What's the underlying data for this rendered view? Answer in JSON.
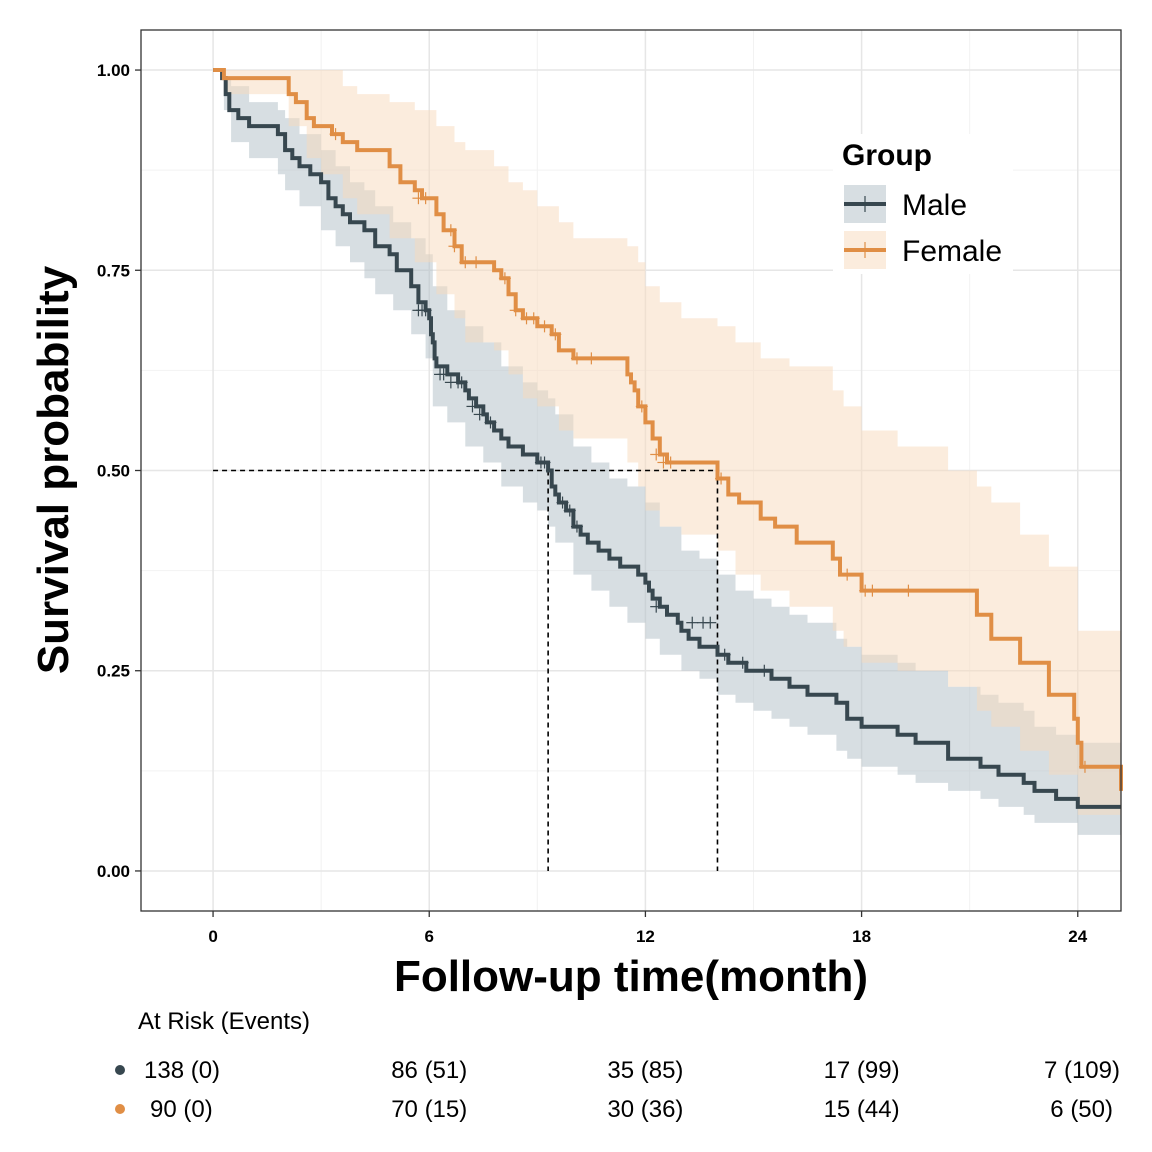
{
  "chart_data": {
    "type": "line",
    "subtype": "kaplan-meier",
    "title": "",
    "xlabel": "Follow-up time(month)",
    "ylabel": "Survival probability",
    "xlim": [
      -2,
      25.2
    ],
    "ylim": [
      -0.05,
      1.05
    ],
    "x_ticks": [
      0,
      6,
      12,
      18,
      24
    ],
    "y_ticks": [
      0.0,
      0.25,
      0.5,
      0.75,
      1.0
    ],
    "y_tick_labels": [
      "0.00",
      "0.25",
      "0.50",
      "0.75",
      "1.00"
    ],
    "grid": true,
    "legend": {
      "title": "Group",
      "position": "top-right"
    },
    "median_lines": [
      {
        "series": "Male",
        "x": 9.3,
        "y": 0.5
      },
      {
        "series": "Female",
        "x": 14.0,
        "y": 0.5
      }
    ],
    "series": [
      {
        "name": "Male",
        "color": "#37474F",
        "band_color": "#B0BEC5",
        "steps": [
          [
            0,
            1.0
          ],
          [
            0.25,
            0.99
          ],
          [
            0.35,
            0.97
          ],
          [
            0.45,
            0.95
          ],
          [
            0.7,
            0.94
          ],
          [
            1.0,
            0.93
          ],
          [
            1.8,
            0.92
          ],
          [
            2.0,
            0.9
          ],
          [
            2.2,
            0.89
          ],
          [
            2.4,
            0.88
          ],
          [
            2.7,
            0.87
          ],
          [
            3.0,
            0.86
          ],
          [
            3.2,
            0.84
          ],
          [
            3.4,
            0.83
          ],
          [
            3.6,
            0.82
          ],
          [
            3.8,
            0.81
          ],
          [
            4.2,
            0.8
          ],
          [
            4.5,
            0.78
          ],
          [
            4.9,
            0.77
          ],
          [
            5.1,
            0.75
          ],
          [
            5.5,
            0.73
          ],
          [
            5.7,
            0.71
          ],
          [
            5.9,
            0.7
          ],
          [
            6.0,
            0.69
          ],
          [
            6.05,
            0.67
          ],
          [
            6.1,
            0.66
          ],
          [
            6.15,
            0.64
          ],
          [
            6.2,
            0.63
          ],
          [
            6.5,
            0.62
          ],
          [
            6.8,
            0.61
          ],
          [
            7.0,
            0.6
          ],
          [
            7.1,
            0.59
          ],
          [
            7.3,
            0.58
          ],
          [
            7.5,
            0.57
          ],
          [
            7.6,
            0.56
          ],
          [
            7.8,
            0.55
          ],
          [
            8.0,
            0.54
          ],
          [
            8.2,
            0.53
          ],
          [
            8.6,
            0.52
          ],
          [
            9.0,
            0.51
          ],
          [
            9.3,
            0.5
          ],
          [
            9.4,
            0.48
          ],
          [
            9.5,
            0.47
          ],
          [
            9.6,
            0.46
          ],
          [
            9.8,
            0.45
          ],
          [
            10.0,
            0.43
          ],
          [
            10.2,
            0.42
          ],
          [
            10.4,
            0.41
          ],
          [
            10.7,
            0.4
          ],
          [
            11.0,
            0.39
          ],
          [
            11.3,
            0.38
          ],
          [
            11.8,
            0.37
          ],
          [
            12.0,
            0.36
          ],
          [
            12.1,
            0.35
          ],
          [
            12.2,
            0.34
          ],
          [
            12.4,
            0.33
          ],
          [
            12.6,
            0.32
          ],
          [
            12.9,
            0.31
          ],
          [
            13.0,
            0.3
          ],
          [
            13.2,
            0.29
          ],
          [
            13.5,
            0.28
          ],
          [
            14.0,
            0.27
          ],
          [
            14.3,
            0.26
          ],
          [
            14.8,
            0.25
          ],
          [
            15.5,
            0.24
          ],
          [
            16.0,
            0.23
          ],
          [
            16.5,
            0.22
          ],
          [
            17.3,
            0.21
          ],
          [
            17.6,
            0.19
          ],
          [
            18.0,
            0.18
          ],
          [
            19.0,
            0.17
          ],
          [
            19.5,
            0.16
          ],
          [
            20.4,
            0.14
          ],
          [
            21.3,
            0.13
          ],
          [
            21.8,
            0.12
          ],
          [
            22.5,
            0.11
          ],
          [
            22.8,
            0.1
          ],
          [
            23.4,
            0.09
          ],
          [
            24.0,
            0.08
          ],
          [
            25.2,
            0.08
          ]
        ],
        "band": [
          [
            0,
            1.0,
            1.0
          ],
          [
            0.3,
            0.99,
            0.95
          ],
          [
            0.5,
            0.98,
            0.91
          ],
          [
            1.0,
            0.96,
            0.89
          ],
          [
            1.8,
            0.95,
            0.87
          ],
          [
            2.0,
            0.94,
            0.85
          ],
          [
            2.4,
            0.92,
            0.83
          ],
          [
            3.0,
            0.9,
            0.8
          ],
          [
            3.4,
            0.88,
            0.78
          ],
          [
            3.8,
            0.86,
            0.76
          ],
          [
            4.2,
            0.85,
            0.74
          ],
          [
            4.5,
            0.83,
            0.72
          ],
          [
            5.0,
            0.81,
            0.7
          ],
          [
            5.5,
            0.79,
            0.67
          ],
          [
            5.9,
            0.77,
            0.64
          ],
          [
            6.1,
            0.73,
            0.58
          ],
          [
            6.5,
            0.7,
            0.56
          ],
          [
            7.0,
            0.68,
            0.53
          ],
          [
            7.5,
            0.66,
            0.51
          ],
          [
            8.0,
            0.63,
            0.48
          ],
          [
            8.6,
            0.61,
            0.46
          ],
          [
            9.0,
            0.6,
            0.45
          ],
          [
            9.3,
            0.59,
            0.43
          ],
          [
            9.5,
            0.57,
            0.41
          ],
          [
            10.0,
            0.53,
            0.37
          ],
          [
            10.5,
            0.51,
            0.35
          ],
          [
            11.0,
            0.49,
            0.33
          ],
          [
            11.5,
            0.48,
            0.31
          ],
          [
            12.0,
            0.46,
            0.29
          ],
          [
            12.4,
            0.43,
            0.27
          ],
          [
            13.0,
            0.4,
            0.25
          ],
          [
            13.5,
            0.39,
            0.24
          ],
          [
            14.0,
            0.37,
            0.22
          ],
          [
            14.5,
            0.35,
            0.21
          ],
          [
            15.0,
            0.34,
            0.2
          ],
          [
            15.5,
            0.33,
            0.19
          ],
          [
            16.0,
            0.32,
            0.18
          ],
          [
            16.5,
            0.31,
            0.17
          ],
          [
            17.3,
            0.29,
            0.15
          ],
          [
            17.6,
            0.28,
            0.14
          ],
          [
            18.0,
            0.27,
            0.13
          ],
          [
            19.0,
            0.26,
            0.12
          ],
          [
            19.5,
            0.25,
            0.11
          ],
          [
            20.4,
            0.23,
            0.1
          ],
          [
            21.3,
            0.22,
            0.09
          ],
          [
            21.8,
            0.21,
            0.08
          ],
          [
            22.5,
            0.2,
            0.07
          ],
          [
            22.8,
            0.18,
            0.06
          ],
          [
            23.4,
            0.17,
            0.06
          ],
          [
            24.0,
            0.16,
            0.045
          ],
          [
            25.2,
            0.16,
            0.045
          ]
        ],
        "censored": [
          [
            5.7,
            0.7
          ],
          [
            5.8,
            0.7
          ],
          [
            5.9,
            0.7
          ],
          [
            6.3,
            0.62
          ],
          [
            6.4,
            0.62
          ],
          [
            6.6,
            0.61
          ],
          [
            6.8,
            0.61
          ],
          [
            6.9,
            0.61
          ],
          [
            7.2,
            0.58
          ],
          [
            7.4,
            0.57
          ],
          [
            7.7,
            0.56
          ],
          [
            9.1,
            0.51
          ],
          [
            9.2,
            0.51
          ],
          [
            9.7,
            0.46
          ],
          [
            9.9,
            0.45
          ],
          [
            10.1,
            0.43
          ],
          [
            12.3,
            0.33
          ],
          [
            13.3,
            0.31
          ],
          [
            13.6,
            0.31
          ],
          [
            13.8,
            0.31
          ],
          [
            14.2,
            0.27
          ],
          [
            14.7,
            0.26
          ],
          [
            15.3,
            0.25
          ]
        ]
      },
      {
        "name": "Female",
        "color": "#E08E45",
        "band_color": "#F8D9BC",
        "steps": [
          [
            0,
            1.0
          ],
          [
            0.3,
            0.99
          ],
          [
            2.1,
            0.97
          ],
          [
            2.3,
            0.96
          ],
          [
            2.6,
            0.94
          ],
          [
            2.8,
            0.93
          ],
          [
            3.3,
            0.92
          ],
          [
            3.6,
            0.91
          ],
          [
            4.0,
            0.9
          ],
          [
            4.9,
            0.88
          ],
          [
            5.2,
            0.86
          ],
          [
            5.6,
            0.85
          ],
          [
            5.8,
            0.84
          ],
          [
            6.2,
            0.82
          ],
          [
            6.4,
            0.8
          ],
          [
            6.7,
            0.78
          ],
          [
            6.9,
            0.76
          ],
          [
            7.8,
            0.75
          ],
          [
            8.0,
            0.74
          ],
          [
            8.2,
            0.72
          ],
          [
            8.4,
            0.7
          ],
          [
            8.6,
            0.69
          ],
          [
            9.0,
            0.68
          ],
          [
            9.4,
            0.67
          ],
          [
            9.6,
            0.65
          ],
          [
            10.0,
            0.64
          ],
          [
            11.5,
            0.62
          ],
          [
            11.6,
            0.61
          ],
          [
            11.7,
            0.6
          ],
          [
            11.8,
            0.58
          ],
          [
            12.0,
            0.56
          ],
          [
            12.2,
            0.54
          ],
          [
            12.4,
            0.52
          ],
          [
            12.6,
            0.51
          ],
          [
            14.0,
            0.49
          ],
          [
            14.3,
            0.47
          ],
          [
            14.6,
            0.46
          ],
          [
            15.2,
            0.44
          ],
          [
            15.6,
            0.43
          ],
          [
            16.2,
            0.41
          ],
          [
            17.2,
            0.39
          ],
          [
            17.4,
            0.37
          ],
          [
            18.0,
            0.35
          ],
          [
            21.2,
            0.32
          ],
          [
            21.6,
            0.29
          ],
          [
            22.4,
            0.26
          ],
          [
            23.2,
            0.22
          ],
          [
            23.9,
            0.19
          ],
          [
            24.0,
            0.16
          ],
          [
            24.1,
            0.13
          ],
          [
            25.2,
            0.1
          ]
        ],
        "band": [
          [
            0,
            1.0,
            1.0
          ],
          [
            0.3,
            1.0,
            0.97
          ],
          [
            2.1,
            1.0,
            0.93
          ],
          [
            2.6,
            1.0,
            0.89
          ],
          [
            3.0,
            1.0,
            0.87
          ],
          [
            3.6,
            0.98,
            0.84
          ],
          [
            4.0,
            0.97,
            0.82
          ],
          [
            4.9,
            0.96,
            0.79
          ],
          [
            5.6,
            0.95,
            0.76
          ],
          [
            6.2,
            0.93,
            0.72
          ],
          [
            6.7,
            0.91,
            0.69
          ],
          [
            7.0,
            0.9,
            0.66
          ],
          [
            7.8,
            0.88,
            0.65
          ],
          [
            8.2,
            0.86,
            0.62
          ],
          [
            8.6,
            0.85,
            0.59
          ],
          [
            9.0,
            0.83,
            0.58
          ],
          [
            9.6,
            0.81,
            0.55
          ],
          [
            10.0,
            0.79,
            0.54
          ],
          [
            11.5,
            0.78,
            0.51
          ],
          [
            11.8,
            0.76,
            0.48
          ],
          [
            12.0,
            0.73,
            0.45
          ],
          [
            12.4,
            0.71,
            0.43
          ],
          [
            13.0,
            0.69,
            0.42
          ],
          [
            14.0,
            0.68,
            0.4
          ],
          [
            14.5,
            0.66,
            0.37
          ],
          [
            15.2,
            0.64,
            0.35
          ],
          [
            16.0,
            0.63,
            0.33
          ],
          [
            17.2,
            0.6,
            0.3
          ],
          [
            17.5,
            0.58,
            0.28
          ],
          [
            18.0,
            0.55,
            0.26
          ],
          [
            19.0,
            0.53,
            0.25
          ],
          [
            20.4,
            0.5,
            0.23
          ],
          [
            21.2,
            0.48,
            0.2
          ],
          [
            21.6,
            0.46,
            0.18
          ],
          [
            22.4,
            0.42,
            0.15
          ],
          [
            23.2,
            0.38,
            0.12
          ],
          [
            24.0,
            0.3,
            0.07
          ],
          [
            25.2,
            0.3,
            0.06
          ]
        ],
        "censored": [
          [
            3.4,
            0.92
          ],
          [
            5.7,
            0.84
          ],
          [
            5.9,
            0.84
          ],
          [
            6.6,
            0.8
          ],
          [
            6.7,
            0.78
          ],
          [
            7.0,
            0.76
          ],
          [
            7.3,
            0.76
          ],
          [
            8.1,
            0.74
          ],
          [
            8.4,
            0.7
          ],
          [
            8.7,
            0.69
          ],
          [
            8.9,
            0.69
          ],
          [
            9.2,
            0.68
          ],
          [
            9.5,
            0.67
          ],
          [
            10.1,
            0.64
          ],
          [
            10.5,
            0.64
          ],
          [
            11.9,
            0.58
          ],
          [
            12.3,
            0.52
          ],
          [
            12.5,
            0.51
          ],
          [
            12.7,
            0.51
          ],
          [
            14.1,
            0.49
          ],
          [
            17.6,
            0.37
          ],
          [
            18.1,
            0.35
          ],
          [
            18.3,
            0.35
          ],
          [
            19.3,
            0.35
          ],
          [
            24.2,
            0.13
          ]
        ]
      }
    ],
    "risk_table": {
      "title": "At Risk (Events)",
      "times": [
        0,
        6,
        12,
        18,
        24
      ],
      "rows": [
        {
          "series": "Male",
          "color": "#37474F",
          "cells": [
            "138 (0)",
            "86 (51)",
            "35 (85)",
            "17 (99)",
            "7 (109)"
          ]
        },
        {
          "series": "Female",
          "color": "#E08E45",
          "cells": [
            "90 (0)",
            "70 (15)",
            "30 (36)",
            "15 (44)",
            "6 (50)"
          ]
        }
      ]
    }
  }
}
